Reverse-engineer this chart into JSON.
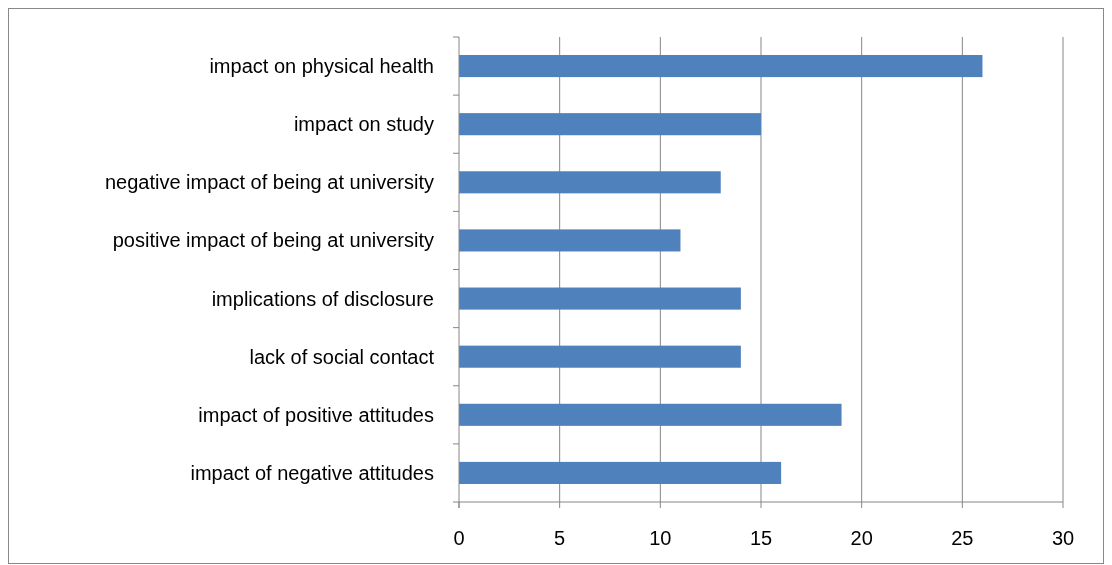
{
  "chart_data": {
    "type": "bar",
    "orientation": "horizontal",
    "categories": [
      "impact on physical health",
      "impact on study",
      "negative impact of being at university",
      "positive impact of being at university",
      "implications of disclosure",
      "lack of social contact",
      "impact of positive attitudes",
      "impact of negative attitudes"
    ],
    "values": [
      26,
      15,
      13,
      11,
      14,
      14,
      19,
      16
    ],
    "color": "#4f81bd",
    "xlim": [
      0,
      30
    ],
    "xticks": [
      0,
      5,
      10,
      15,
      20,
      25,
      30
    ],
    "grid": "x"
  }
}
